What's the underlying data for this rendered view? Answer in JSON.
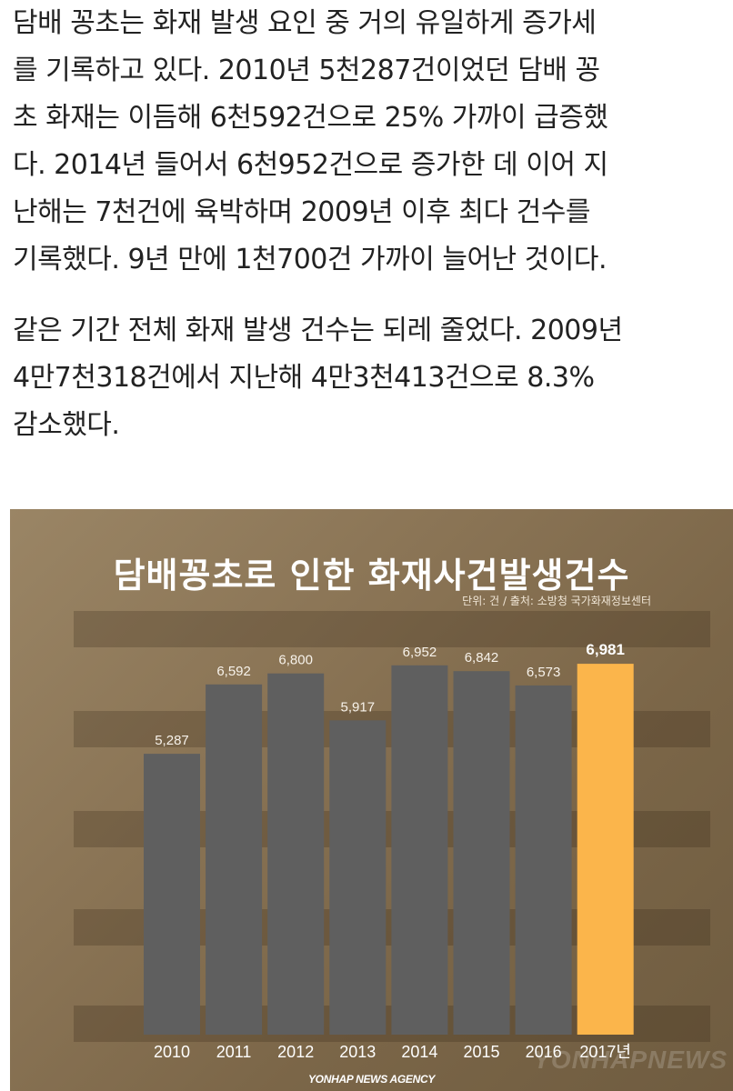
{
  "article": {
    "paragraph1": [
      "담배 꽁초는 화재 발생 요인 중 거의 유일하게 증가세",
      "를 기록하고 있다. 2010년 5천287건이었던 담배 꽁",
      "초 화재는 이듬해 6천592건으로 25% 가까이 급증했",
      "다. 2014년 들어서 6천952건으로 증가한 데 이어 지",
      "난해는 7천건에 육박하며 2009년 이후 최다 건수를",
      "기록했다. 9년 만에 1천700건 가까이 늘어난 것이다."
    ],
    "paragraph2": [
      "같은 기간 전체 화재 발생 건수는 되레 줄었다. 2009년",
      "4만7천318건에서 지난해 4만3천413건으로 8.3%",
      "감소했다."
    ]
  },
  "chart_data": {
    "type": "bar",
    "title": "담배꽁초로 인한 화재사건발생건수",
    "source": "단위: 건 / 출처: 소방청 국가화재정보센터",
    "categories": [
      "2010",
      "2011",
      "2012",
      "2013",
      "2014",
      "2015",
      "2016",
      "2017년"
    ],
    "values": [
      5287,
      6592,
      6800,
      5917,
      6952,
      6842,
      6573,
      6981
    ],
    "data_labels": [
      "5,287",
      "6,592",
      "6,800",
      "5,917",
      "6,952",
      "6,842",
      "6,573",
      "6,981"
    ],
    "ylim": [
      0,
      7000
    ],
    "highlight_index": 7,
    "colors": {
      "bar": "#5f5f5f",
      "highlight": "#fbb54b",
      "label": "#f7f2ea",
      "highlight_label": "#ffffff",
      "tick": "#ffffff"
    },
    "xlabel": "",
    "ylabel": ""
  },
  "credit": {
    "agency": "YONHAP NEWS AGENCY",
    "watermark": "YONHAPNEWS"
  }
}
